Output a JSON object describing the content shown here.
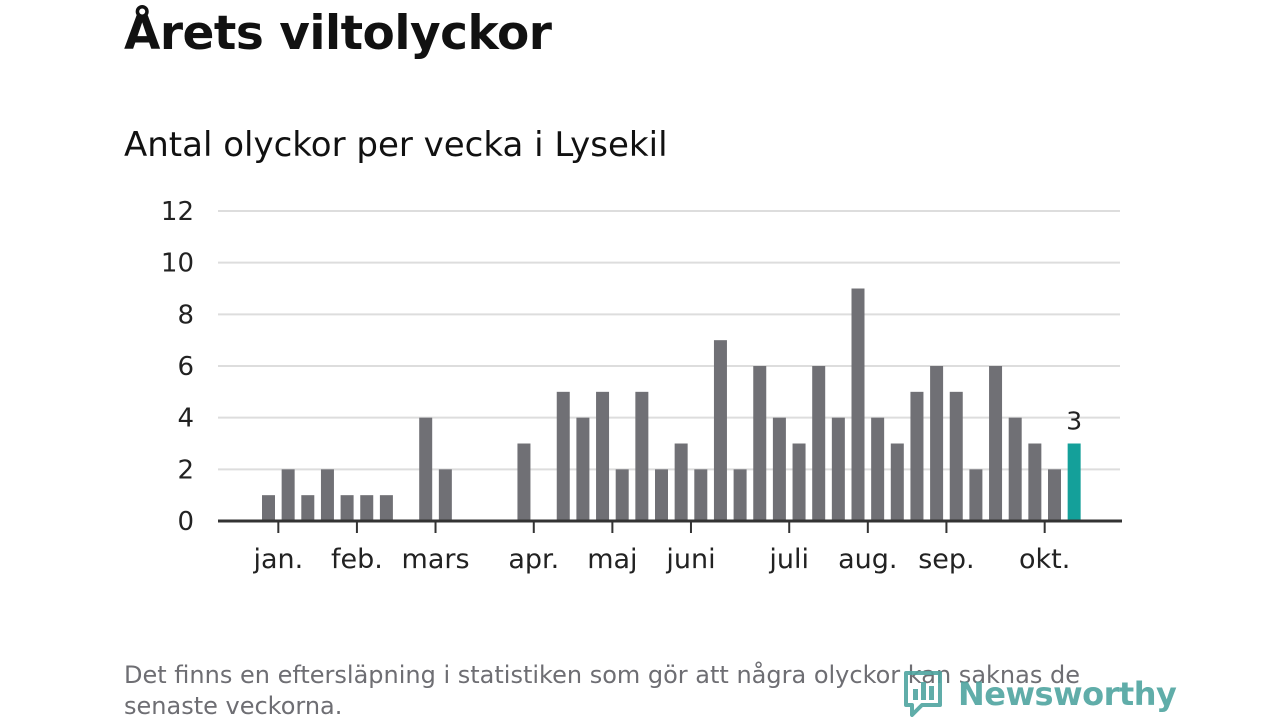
{
  "chart_data": {
    "type": "bar",
    "title": "Årets viltolyckor",
    "subtitle": "Antal olyckor per vecka i Lysekil",
    "ylim": [
      0,
      12
    ],
    "yticks": [
      0,
      2,
      4,
      6,
      8,
      10,
      12
    ],
    "grid": true,
    "x": [
      1,
      2,
      3,
      4,
      5,
      6,
      7,
      8,
      9,
      10,
      11,
      12,
      13,
      14,
      15,
      16,
      17,
      18,
      19,
      20,
      21,
      22,
      23,
      24,
      25,
      26,
      27,
      28,
      29,
      30,
      31,
      32,
      33,
      34,
      35,
      36,
      37,
      38,
      39,
      40,
      41,
      42
    ],
    "values": [
      1,
      2,
      1,
      2,
      1,
      1,
      1,
      0,
      4,
      2,
      0,
      0,
      0,
      3,
      0,
      5,
      4,
      5,
      2,
      5,
      2,
      3,
      2,
      7,
      2,
      6,
      4,
      3,
      6,
      4,
      9,
      4,
      3,
      5,
      6,
      5,
      2,
      6,
      4,
      3,
      2,
      3
    ],
    "month_ticks": [
      {
        "label": "jan.",
        "week": 1.5
      },
      {
        "label": "feb.",
        "week": 5.5
      },
      {
        "label": "mars",
        "week": 9.5
      },
      {
        "label": "apr.",
        "week": 14.5
      },
      {
        "label": "maj",
        "week": 18.5
      },
      {
        "label": "juni",
        "week": 22.5
      },
      {
        "label": "juli",
        "week": 27.5
      },
      {
        "label": "aug.",
        "week": 31.5
      },
      {
        "label": "sep.",
        "week": 35.5
      },
      {
        "label": "okt.",
        "week": 40.5
      }
    ],
    "highlight": {
      "index": 41,
      "label": "3"
    },
    "colors": {
      "bar": "#707075",
      "highlight": "#14a09a",
      "grid": "#dddddd",
      "axis": "#333333"
    }
  },
  "footnote": "Det finns en eftersläpning i statistiken som gör att några olyckor kan saknas de senaste veckorna.",
  "logo": {
    "text": "Newsworthy",
    "icon": "bar-chart-speech-icon",
    "color": "#4fa5a0"
  }
}
